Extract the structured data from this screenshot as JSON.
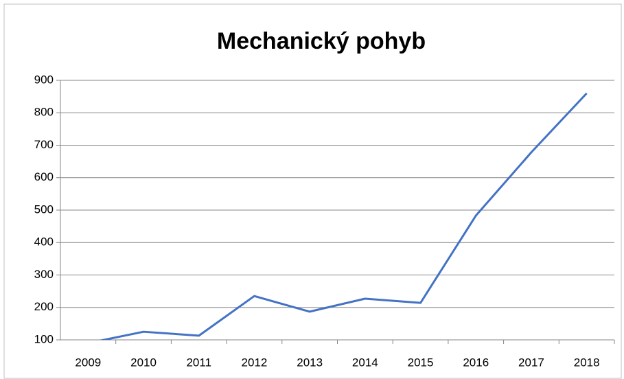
{
  "chart_data": {
    "type": "line",
    "title": "Mechanický pohyb",
    "categories": [
      "2009",
      "2010",
      "2011",
      "2012",
      "2013",
      "2014",
      "2015",
      "2016",
      "2017",
      "2018"
    ],
    "series": [
      {
        "name": "Mechanický pohyb",
        "color": "#4472c4",
        "values": [
          90,
          125,
          113,
          235,
          187,
          227,
          214,
          483,
          678,
          860
        ]
      }
    ],
    "ylim": [
      100,
      900
    ],
    "yticks": [
      100,
      200,
      300,
      400,
      500,
      600,
      700,
      800,
      900
    ],
    "grid": true
  }
}
